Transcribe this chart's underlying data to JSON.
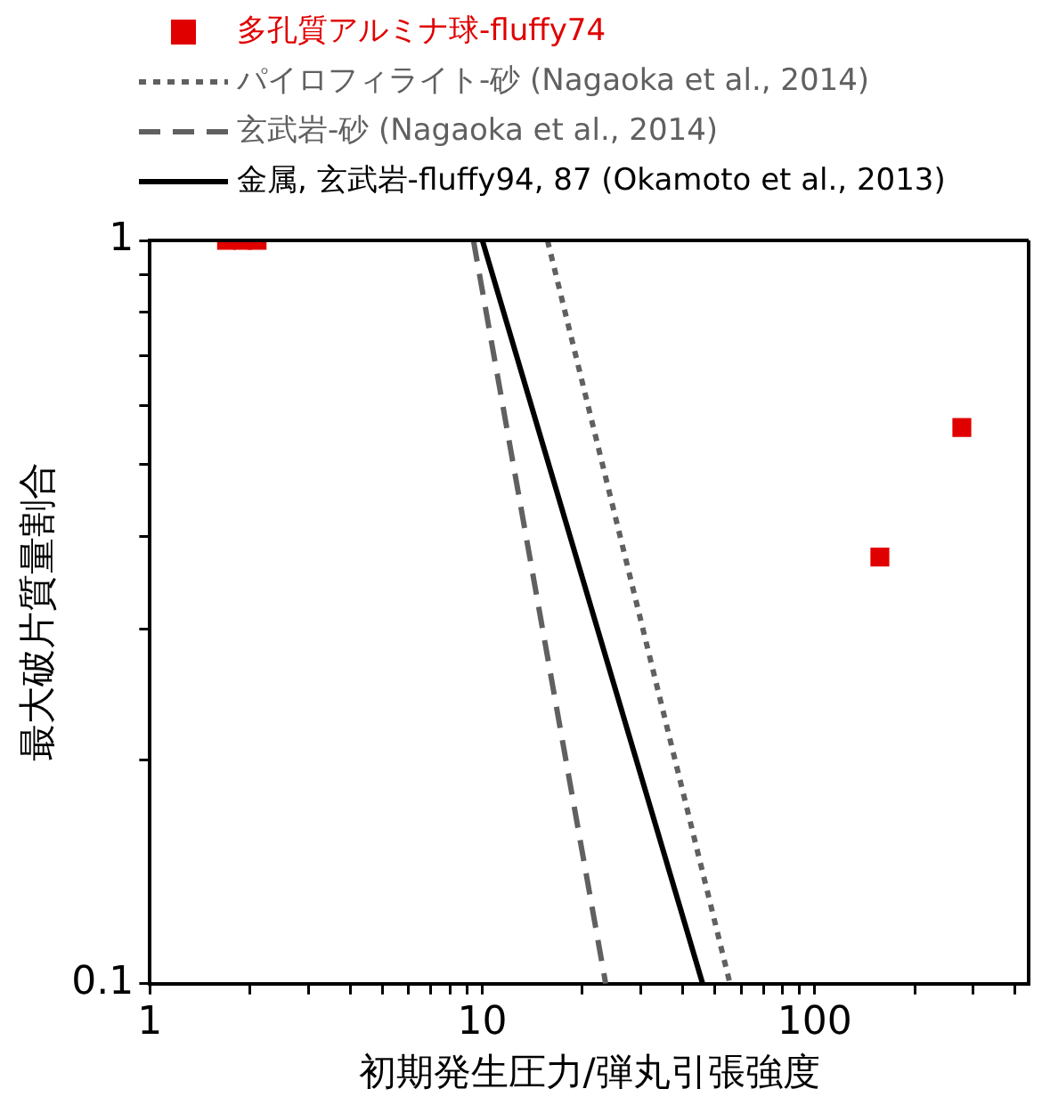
{
  "chart_data": {
    "type": "scatter",
    "xlabel": "初期発生圧力/弾丸引張強度",
    "ylabel": "最大破片質量割合",
    "log": "xy",
    "xlim": [
      1,
      440
    ],
    "ylim": [
      0.1,
      1
    ],
    "xticks": [
      1,
      {
        "value": 2,
        "label": null
      },
      {
        "value": 3,
        "label": null
      },
      {
        "value": 4,
        "label": null
      },
      {
        "value": 5,
        "label": null
      },
      {
        "value": 6,
        "label": null
      },
      {
        "value": 7,
        "label": null
      },
      {
        "value": 8,
        "label": null
      },
      {
        "value": 9,
        "label": null
      },
      10,
      {
        "value": 20,
        "label": null
      },
      {
        "value": 30,
        "label": null
      },
      {
        "value": 40,
        "label": null
      },
      {
        "value": 50,
        "label": null
      },
      {
        "value": 60,
        "label": null
      },
      {
        "value": 70,
        "label": null
      },
      {
        "value": 80,
        "label": null
      },
      {
        "value": 90,
        "label": null
      },
      100,
      {
        "value": 200,
        "label": null
      },
      {
        "value": 300,
        "label": null
      },
      {
        "value": 400,
        "label": null
      }
    ],
    "yticks": [
      0.1,
      {
        "value": 0.2,
        "label": null
      },
      {
        "value": 0.3,
        "label": null
      },
      {
        "value": 0.4,
        "label": null
      },
      {
        "value": 0.5,
        "label": null
      },
      {
        "value": 0.6,
        "label": null
      },
      {
        "value": 0.7,
        "label": null
      },
      {
        "value": 0.8,
        "label": null
      },
      {
        "value": 0.9,
        "label": null
      },
      1
    ],
    "legend": "top left",
    "grid": false,
    "series": [
      {
        "name": "多孔質アルミナ球-fluffy74",
        "color": "#e00000",
        "marker": "square",
        "x": [
          1.7,
          1.9,
          2.1,
          157,
          277
        ],
        "values": [
          1,
          1,
          1,
          0.375,
          0.56
        ]
      },
      {
        "name": "パイロフィライト-砂 (Nagaoka et al., 2014)",
        "type": "line",
        "color": "#606060",
        "marker": "none",
        "line_style": "dotted",
        "x": [
          15.7,
          55.6
        ],
        "values": [
          1,
          0.1
        ]
      },
      {
        "name": "玄武岩-砂 (Nagaoka et al., 2014)",
        "type": "line",
        "color": "#606060",
        "marker": "none",
        "line_style": "dashed",
        "x": [
          9.4,
          23.5
        ],
        "values": [
          1,
          0.1
        ]
      },
      {
        "name": "金属, 玄武岩-fluffy94, 87 (Okamoto et al., 2013)",
        "type": "line",
        "color": "#000000",
        "marker": "none",
        "line_style": "solid",
        "x": [
          10,
          46
        ],
        "values": [
          1,
          0.1
        ]
      }
    ]
  }
}
